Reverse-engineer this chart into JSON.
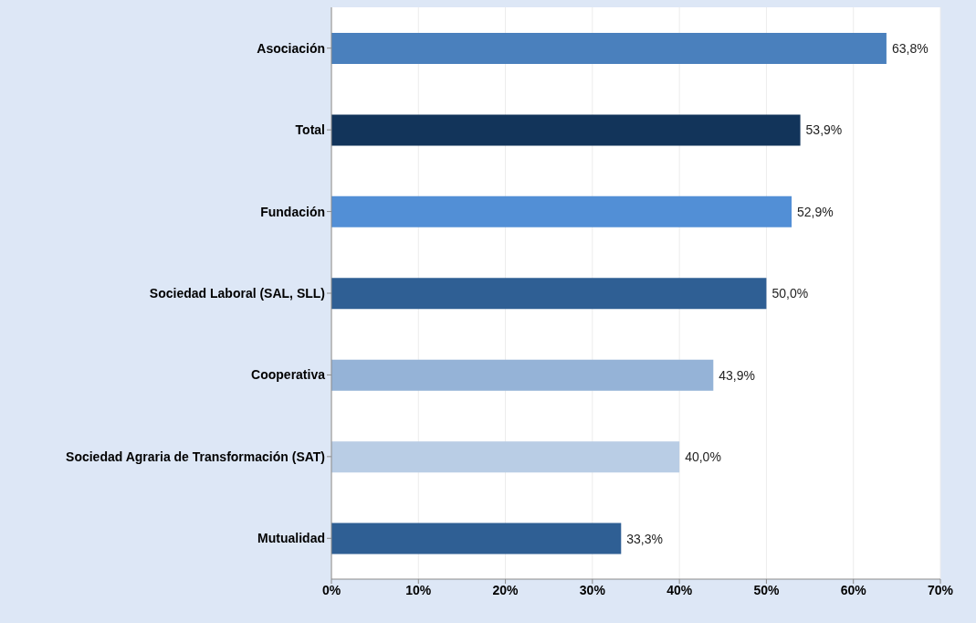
{
  "chart_data": {
    "type": "bar",
    "orientation": "horizontal",
    "categories": [
      "Asociación",
      "Total",
      "Fundación",
      "Sociedad Laboral (SAL, SLL)",
      "Cooperativa",
      "Sociedad Agraria de Transformación (SAT)",
      "Mutualidad"
    ],
    "values": [
      63.8,
      53.9,
      52.9,
      50.0,
      43.9,
      40.0,
      33.3
    ],
    "colors": [
      "#4a80bd",
      "#12345a",
      "#528fd6",
      "#2f5f94",
      "#95b3d7",
      "#b9cde5",
      "#2f5f94"
    ],
    "value_labels": [
      "63,8%",
      "53,9%",
      "52,9%",
      "50,0%",
      "43,9%",
      "40,0%",
      "33,3%"
    ],
    "xlim": [
      0,
      70
    ],
    "xticks": [
      {
        "value": 0,
        "label": "0%"
      },
      {
        "value": 10,
        "label": "10%"
      },
      {
        "value": 20,
        "label": "20%"
      },
      {
        "value": 30,
        "label": "30%"
      },
      {
        "value": 40,
        "label": "40%"
      },
      {
        "value": 50,
        "label": "50%"
      },
      {
        "value": 60,
        "label": "60%"
      },
      {
        "value": 70,
        "label": "70%"
      }
    ],
    "grid": "x",
    "legend": false
  }
}
